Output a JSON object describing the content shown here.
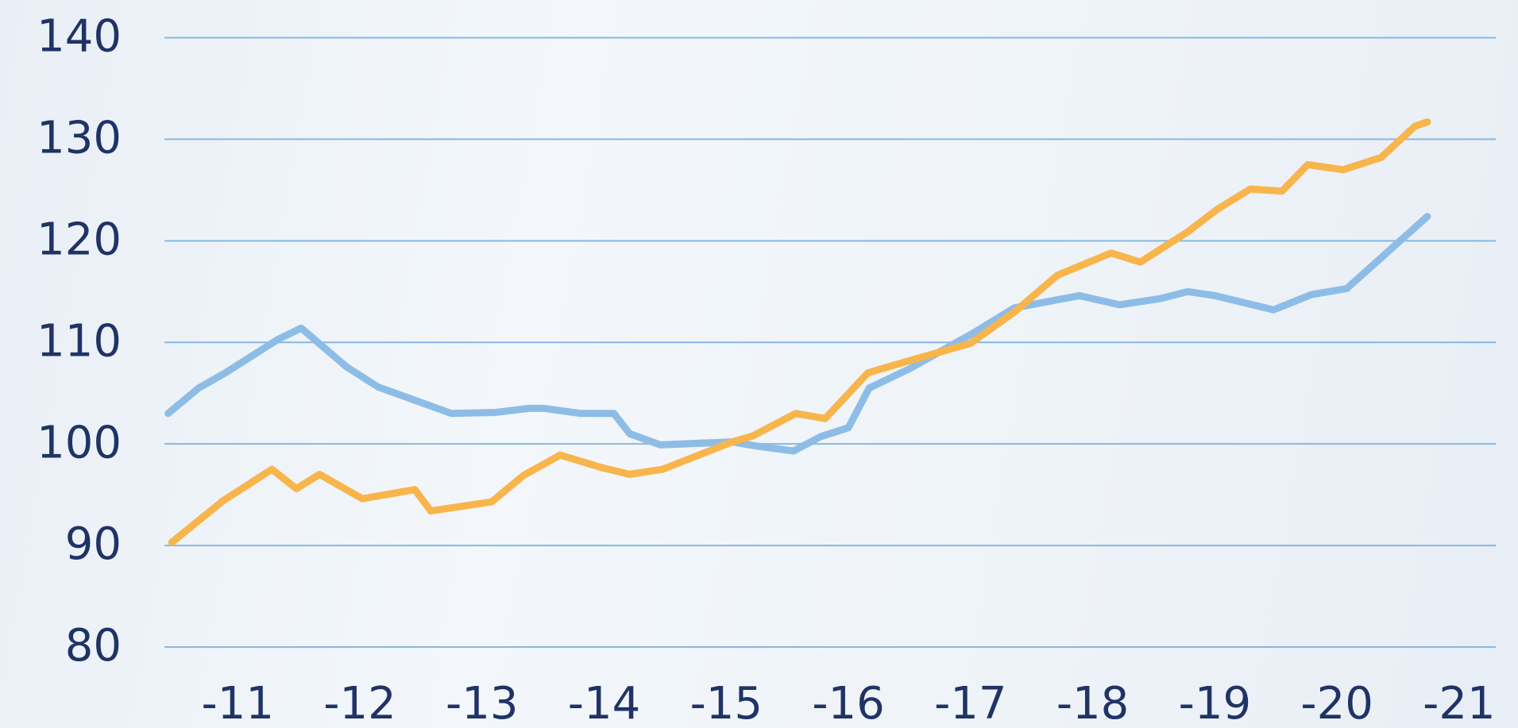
{
  "chart_data": {
    "type": "line",
    "xlim": [
      10.4,
      21.3
    ],
    "xticks": [
      {
        "value": 11,
        "label": "-11"
      },
      {
        "value": 12,
        "label": "-12"
      },
      {
        "value": 13,
        "label": "-13"
      },
      {
        "value": 14,
        "label": "-14"
      },
      {
        "value": 15,
        "label": "-15"
      },
      {
        "value": 16,
        "label": "-16"
      },
      {
        "value": 17,
        "label": "-17"
      },
      {
        "value": 18,
        "label": "-18"
      },
      {
        "value": 19,
        "label": "-19"
      },
      {
        "value": 20,
        "label": "-20"
      },
      {
        "value": 21,
        "label": "-21"
      }
    ],
    "ylim": [
      80,
      140
    ],
    "yticks": [
      80,
      90,
      100,
      110,
      120,
      130,
      140
    ],
    "grid": true,
    "series": [
      {
        "color": "#8dbde6",
        "x": [
          10.43,
          10.68,
          10.9,
          11.33,
          11.52,
          11.89,
          12.15,
          12.75,
          13.11,
          13.38,
          13.51,
          13.81,
          14.08,
          14.21,
          14.46,
          15.05,
          15.24,
          15.55,
          15.77,
          16.0,
          16.17,
          16.5,
          17.02,
          17.36,
          17.89,
          18.22,
          18.55,
          18.78,
          19.0,
          19.48,
          19.79,
          20.08,
          20.74
        ],
        "values": [
          103.0,
          105.5,
          107.0,
          110.3,
          111.4,
          107.6,
          105.6,
          103.0,
          103.1,
          103.5,
          103.5,
          103.0,
          103.0,
          101.0,
          99.9,
          100.2,
          99.8,
          99.3,
          100.7,
          101.6,
          105.5,
          107.4,
          110.9,
          113.4,
          114.6,
          113.7,
          114.3,
          115.0,
          114.6,
          113.2,
          114.7,
          115.3,
          122.4
        ]
      },
      {
        "color": "#f8b54c",
        "x": [
          10.46,
          10.88,
          11.28,
          11.48,
          11.67,
          12.02,
          12.45,
          12.58,
          13.08,
          13.34,
          13.64,
          13.97,
          14.21,
          14.48,
          15.05,
          15.22,
          15.57,
          15.81,
          16.16,
          16.5,
          17.0,
          17.36,
          17.71,
          18.15,
          18.39,
          18.78,
          19.02,
          19.29,
          19.55,
          19.76,
          20.05,
          20.36,
          20.64,
          20.74
        ],
        "values": [
          90.3,
          94.4,
          97.5,
          95.6,
          97.0,
          94.6,
          95.5,
          93.4,
          94.3,
          96.9,
          98.9,
          97.7,
          97.0,
          97.5,
          100.2,
          100.8,
          103.0,
          102.5,
          107.0,
          108.2,
          109.9,
          113.0,
          116.6,
          118.8,
          117.9,
          120.9,
          123.1,
          125.1,
          124.9,
          127.5,
          127.0,
          128.2,
          131.3,
          131.7
        ]
      }
    ]
  }
}
